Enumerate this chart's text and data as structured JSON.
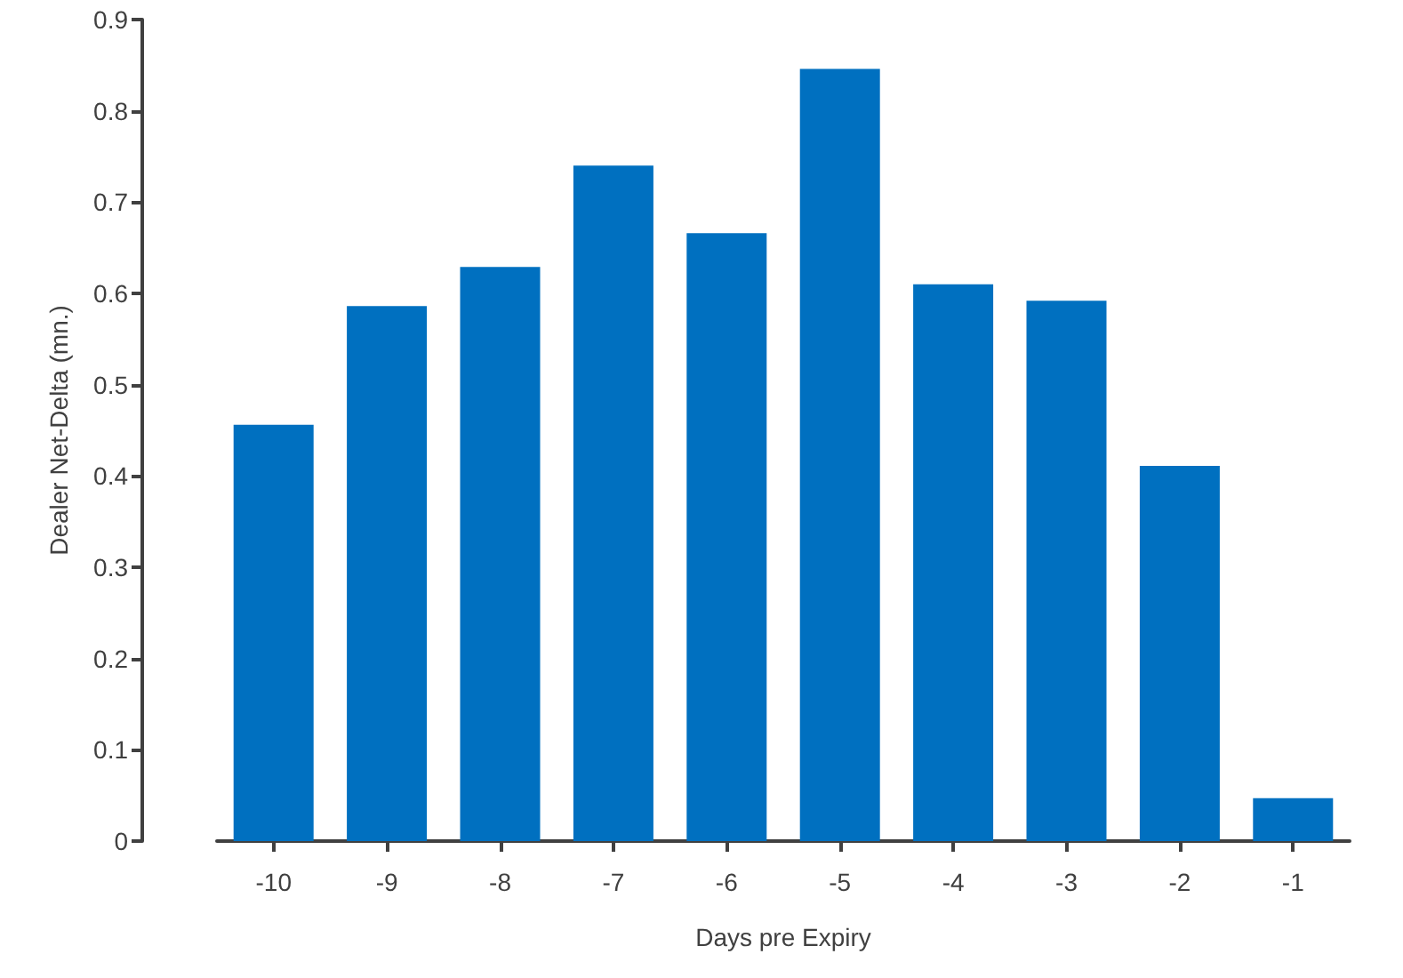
{
  "chart_data": {
    "type": "bar",
    "xlabel": "Days pre Expiry",
    "ylabel": "Dealer Net-Delta (mn.)",
    "categories": [
      "-10",
      "-9",
      "-8",
      "-7",
      "-6",
      "-5",
      "-4",
      "-3",
      "-2",
      "-1"
    ],
    "values": [
      0.456,
      0.586,
      0.629,
      0.74,
      0.666,
      0.846,
      0.61,
      0.592,
      0.411,
      0.047
    ],
    "color": "#0070c0",
    "ylim": [
      0,
      0.9
    ],
    "yticks": [
      0,
      0.1,
      0.2,
      0.3,
      0.4,
      0.5,
      0.6,
      0.7,
      0.8,
      0.9
    ],
    "grid": false
  }
}
